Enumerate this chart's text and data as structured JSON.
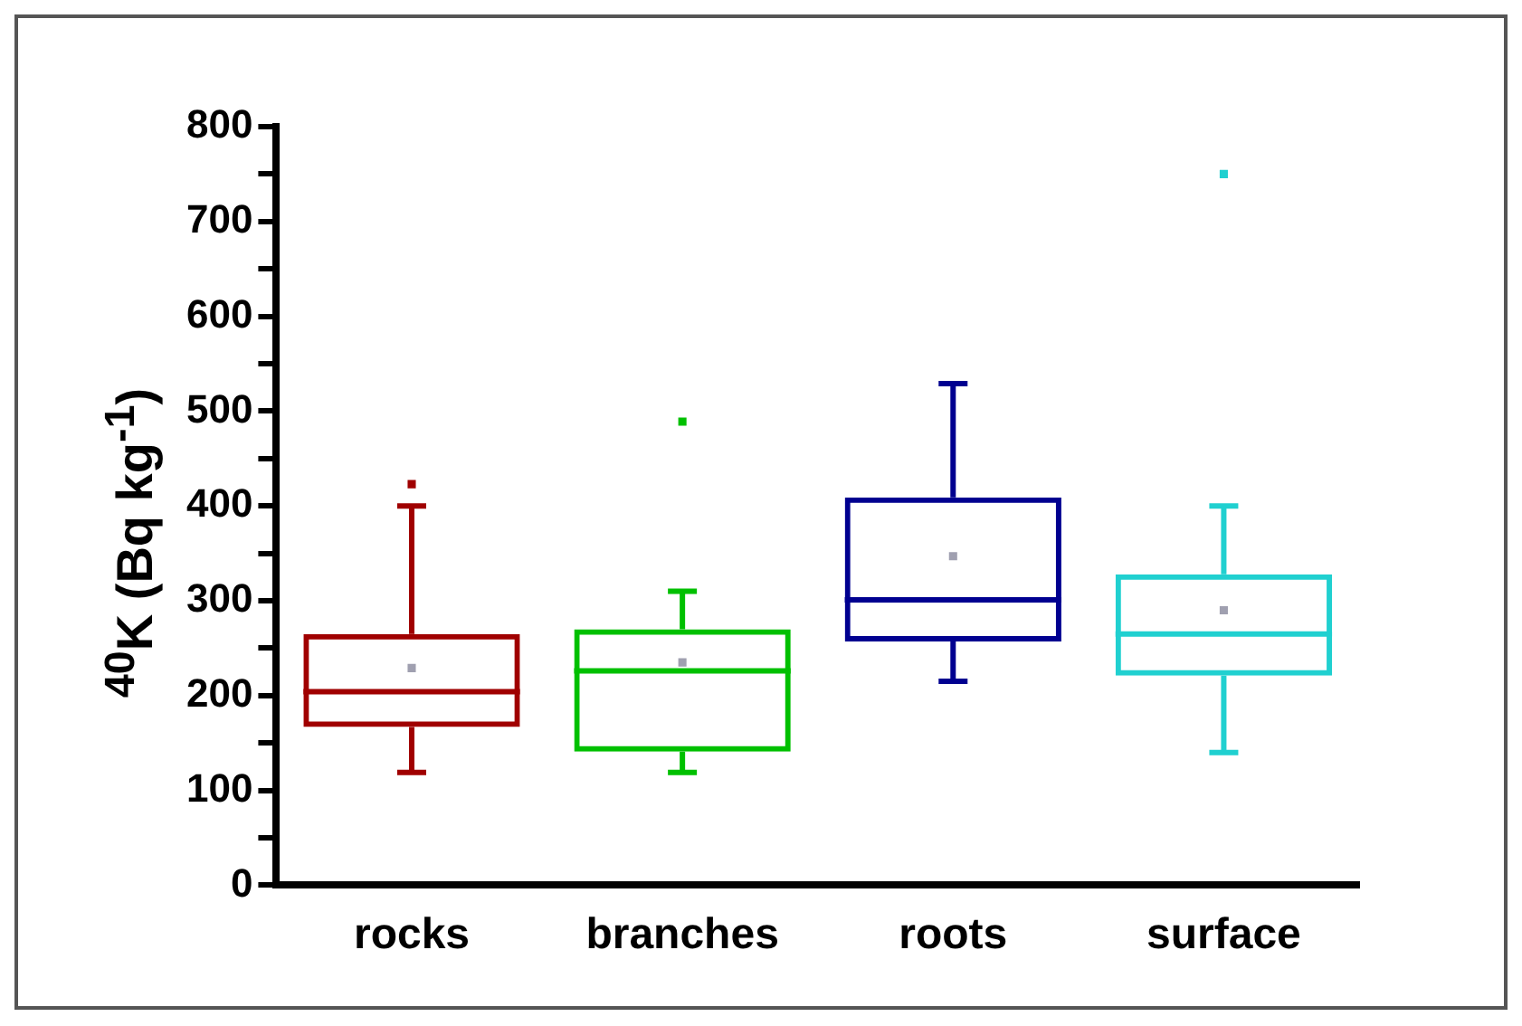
{
  "chart_data": {
    "type": "box",
    "ylabel": "$^{40}$K (Bq kg$^{-1}$)",
    "categories": [
      "rocks",
      "branches",
      "roots",
      "surface"
    ],
    "colors": [
      "#a00000",
      "#00c000",
      "#000090",
      "#20d0d0"
    ],
    "boxes": [
      {
        "low": 119,
        "q1": 167,
        "median": 204,
        "q3": 265,
        "high": 400,
        "mean": 229,
        "outliers": [
          423
        ]
      },
      {
        "low": 119,
        "q1": 141,
        "median": 226,
        "q3": 270,
        "high": 310,
        "mean": 235,
        "outliers": [
          489
        ]
      },
      {
        "low": 215,
        "q1": 257,
        "median": 301,
        "q3": 409,
        "high": 529,
        "mean": 347
      },
      {
        "low": 140,
        "q1": 221,
        "median": 265,
        "q3": 328,
        "high": 400,
        "mean": 290,
        "outliers": [
          750
        ]
      }
    ],
    "ylim": [
      0,
      800
    ],
    "yticks": [
      0,
      {
        "value": 50,
        "label": null
      },
      100,
      {
        "value": 150,
        "label": null
      },
      200,
      {
        "value": 250,
        "label": null
      },
      300,
      {
        "value": 350,
        "label": null
      },
      400,
      {
        "value": 450,
        "label": null
      },
      500,
      {
        "value": 550,
        "label": null
      },
      600,
      {
        "value": 650,
        "label": null
      },
      700,
      {
        "value": 750,
        "label": null
      },
      800
    ],
    "grid": false,
    "legend": false,
    "marker": "square"
  }
}
